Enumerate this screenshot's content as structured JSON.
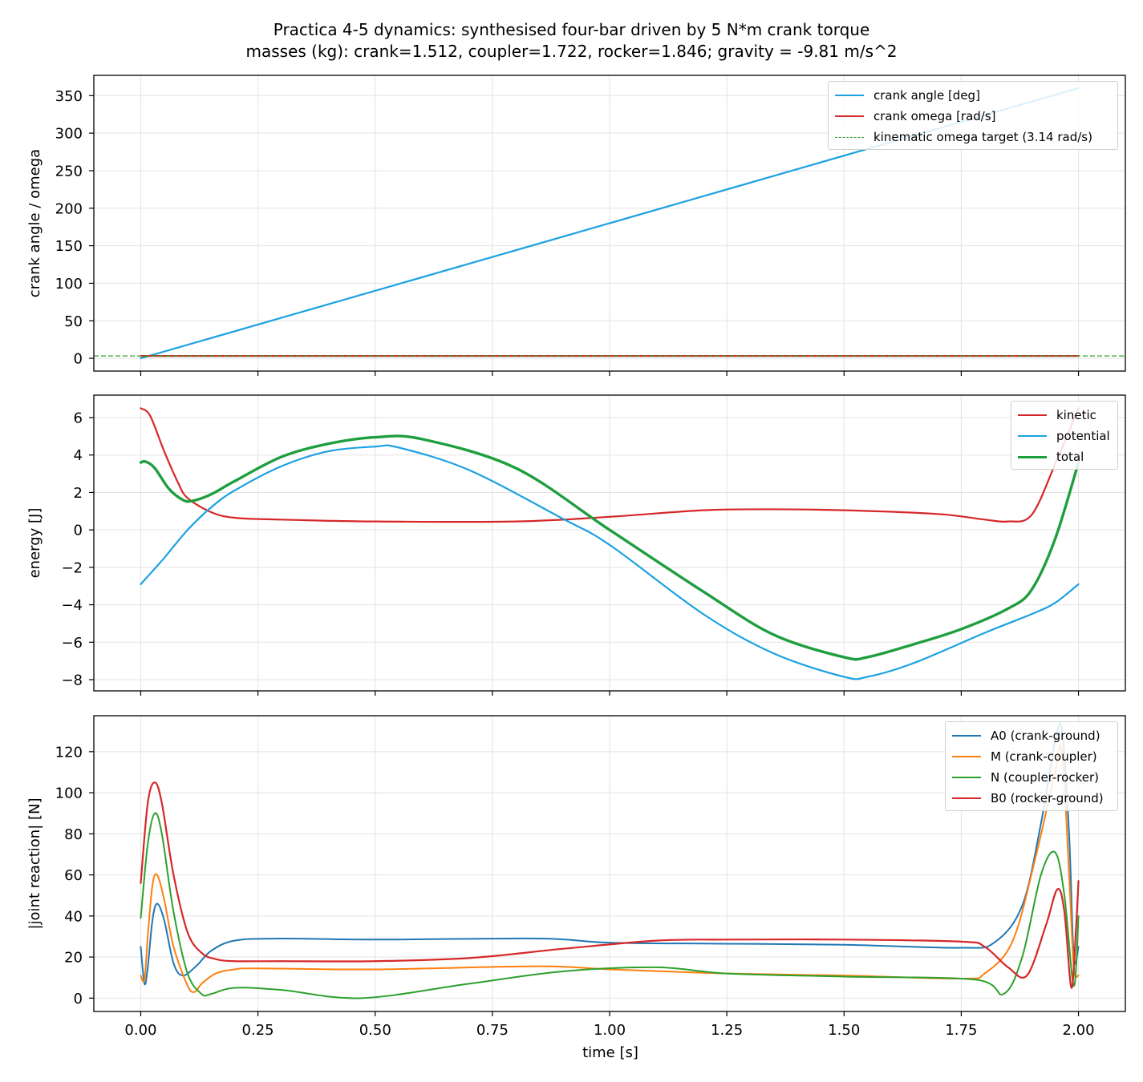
{
  "title": {
    "line1": "Practica 4-5 dynamics: synthesised four-bar driven by 5 N*m crank torque",
    "line2": "masses (kg): crank=1.512, coupler=1.722, rocker=1.846;   gravity = -9.81 m/s^2"
  },
  "chart_data": [
    {
      "type": "line",
      "ylabel": "crank angle / omega",
      "xlabel": "",
      "xlim": [
        -0.1,
        2.1
      ],
      "ylim": [
        -17,
        377
      ],
      "xticks": [
        0.0,
        0.25,
        0.5,
        0.75,
        1.0,
        1.25,
        1.5,
        1.75,
        2.0
      ],
      "yticks": [
        0,
        50,
        100,
        150,
        200,
        250,
        300,
        350
      ],
      "ytick_labels": [
        "0",
        "50",
        "100",
        "150",
        "200",
        "250",
        "300",
        "350"
      ],
      "grid": true,
      "legend_position": "top-right",
      "series": [
        {
          "name": "crank angle [deg]",
          "color": "#1ba1e2",
          "width": 2.2,
          "style": "solid",
          "x": [
            0,
            2
          ],
          "y": [
            0,
            360
          ]
        },
        {
          "name": "crank omega [rad/s]",
          "color": "#d62728",
          "width": 2.2,
          "style": "solid",
          "x": [
            0,
            2
          ],
          "y": [
            3.14,
            3.14
          ]
        },
        {
          "name": "kinematic omega target (3.14 rad/s)",
          "color": "#2ca02c",
          "width": 1.3,
          "style": "dashed",
          "x": [
            -0.1,
            2.1
          ],
          "y": [
            3.14,
            3.14
          ]
        }
      ]
    },
    {
      "type": "line",
      "ylabel": "energy  [J]",
      "xlabel": "",
      "xlim": [
        -0.1,
        2.1
      ],
      "ylim": [
        -8.6,
        7.2
      ],
      "xticks": [
        0.0,
        0.25,
        0.5,
        0.75,
        1.0,
        1.25,
        1.5,
        1.75,
        2.0
      ],
      "yticks": [
        -8,
        -6,
        -4,
        -2,
        0,
        2,
        4,
        6
      ],
      "ytick_labels": [
        "−8",
        "−6",
        "−4",
        "−2",
        "0",
        "2",
        "4",
        "6"
      ],
      "grid": true,
      "legend_position": "top-right",
      "series": [
        {
          "name": "kinetic",
          "color": "#d62728",
          "width": 2.2,
          "style": "solid",
          "x": [
            0,
            0.02,
            0.05,
            0.08,
            0.1,
            0.15,
            0.2,
            0.3,
            0.5,
            0.8,
            1.0,
            1.2,
            1.35,
            1.5,
            1.7,
            1.8,
            1.85,
            1.9,
            1.95,
            2.0
          ],
          "y": [
            6.5,
            6.1,
            4.2,
            2.5,
            1.7,
            0.95,
            0.65,
            0.55,
            0.45,
            0.45,
            0.7,
            1.05,
            1.1,
            1.05,
            0.85,
            0.55,
            0.45,
            0.8,
            3.5,
            6.5
          ]
        },
        {
          "name": "potential",
          "color": "#1ba1e2",
          "width": 2.2,
          "style": "solid",
          "x": [
            0,
            0.05,
            0.1,
            0.15,
            0.2,
            0.3,
            0.4,
            0.5,
            0.55,
            0.7,
            0.9,
            1.0,
            1.2,
            1.35,
            1.5,
            1.55,
            1.65,
            1.8,
            1.9,
            1.95,
            2.0
          ],
          "y": [
            -2.9,
            -1.5,
            0.0,
            1.2,
            2.1,
            3.4,
            4.2,
            4.45,
            4.4,
            3.2,
            0.6,
            -0.8,
            -4.5,
            -6.6,
            -7.85,
            -7.85,
            -7.1,
            -5.5,
            -4.5,
            -3.9,
            -2.9
          ]
        },
        {
          "name": "total",
          "color": "#1f9e3f",
          "width": 3.4,
          "style": "solid",
          "x": [
            0,
            0.01,
            0.03,
            0.06,
            0.09,
            0.11,
            0.15,
            0.2,
            0.3,
            0.4,
            0.5,
            0.6,
            0.8,
            1.0,
            1.2,
            1.35,
            1.5,
            1.55,
            1.65,
            1.75,
            1.85,
            1.9,
            1.95,
            2.0
          ],
          "y": [
            3.6,
            3.65,
            3.3,
            2.2,
            1.6,
            1.55,
            1.9,
            2.6,
            3.9,
            4.6,
            4.95,
            4.85,
            3.3,
            0.0,
            -3.3,
            -5.6,
            -6.8,
            -6.8,
            -6.1,
            -5.3,
            -4.2,
            -3.2,
            -0.5,
            3.6
          ]
        }
      ]
    },
    {
      "type": "line",
      "ylabel": "|joint reaction|  [N]",
      "xlabel": "time  [s]",
      "xlim": [
        -0.1,
        2.1
      ],
      "ylim": [
        -6.5,
        137.5
      ],
      "xticks": [
        0.0,
        0.25,
        0.5,
        0.75,
        1.0,
        1.25,
        1.5,
        1.75,
        2.0
      ],
      "xtick_labels": [
        "0.00",
        "0.25",
        "0.50",
        "0.75",
        "1.00",
        "1.25",
        "1.50",
        "1.75",
        "2.00"
      ],
      "yticks": [
        0,
        20,
        40,
        60,
        80,
        100,
        120
      ],
      "ytick_labels": [
        "0",
        "20",
        "40",
        "60",
        "80",
        "100",
        "120"
      ],
      "grid": true,
      "legend_position": "top-right",
      "series": [
        {
          "name": "A0 (crank-ground)",
          "color": "#1f77b4",
          "width": 2.0,
          "style": "solid",
          "x": [
            0,
            0.008,
            0.015,
            0.025,
            0.035,
            0.05,
            0.07,
            0.09,
            0.12,
            0.15,
            0.2,
            0.3,
            0.5,
            0.85,
            1.0,
            1.25,
            1.5,
            1.75,
            1.82,
            1.88,
            1.92,
            1.95,
            1.965,
            1.98,
            1.99,
            2.0
          ],
          "y": [
            25,
            7,
            15,
            38,
            46,
            38,
            17,
            11,
            16,
            23,
            28,
            29,
            28.5,
            29,
            27,
            26.5,
            26,
            24.5,
            27,
            45,
            85,
            125,
            130,
            80,
            20,
            25
          ]
        },
        {
          "name": "M (crank-coupler)",
          "color": "#ff7f0e",
          "width": 2.0,
          "style": "solid",
          "x": [
            0,
            0.008,
            0.015,
            0.025,
            0.035,
            0.05,
            0.07,
            0.1,
            0.115,
            0.13,
            0.16,
            0.2,
            0.25,
            0.5,
            0.85,
            1.0,
            1.25,
            1.5,
            1.75,
            1.8,
            1.86,
            1.91,
            1.95,
            1.965,
            1.98,
            1.99,
            2.0
          ],
          "y": [
            11,
            9,
            30,
            55,
            60,
            48,
            25,
            6,
            3,
            7,
            12,
            14,
            14.5,
            14,
            15.5,
            14,
            12,
            11,
            9.5,
            12,
            28,
            70,
            110,
            120,
            60,
            15,
            11
          ]
        },
        {
          "name": "N (coupler-rocker)",
          "color": "#2ca02c",
          "width": 2.0,
          "style": "solid",
          "x": [
            0,
            0.015,
            0.03,
            0.045,
            0.07,
            0.1,
            0.13,
            0.15,
            0.2,
            0.3,
            0.47,
            0.7,
            0.9,
            1.1,
            1.25,
            1.5,
            1.78,
            1.84,
            1.88,
            1.92,
            1.95,
            1.97,
            1.99,
            2.0
          ],
          "y": [
            39,
            75,
            90,
            80,
            42,
            12,
            2,
            2,
            5,
            4,
            0,
            7,
            13,
            15,
            12,
            10.5,
            9,
            2,
            20,
            60,
            71,
            50,
            6,
            40
          ]
        },
        {
          "name": "B0 (rocker-ground)",
          "color": "#d62728",
          "width": 2.2,
          "style": "solid",
          "x": [
            0,
            0.015,
            0.03,
            0.045,
            0.07,
            0.1,
            0.13,
            0.16,
            0.2,
            0.3,
            0.5,
            0.7,
            0.9,
            1.1,
            1.25,
            1.5,
            1.75,
            1.8,
            1.85,
            1.89,
            1.93,
            1.955,
            1.97,
            1.985,
            1.995,
            2.0
          ],
          "y": [
            56,
            95,
            105,
            95,
            60,
            32,
            22,
            19,
            18,
            18,
            18,
            19.5,
            24,
            28,
            28.5,
            28.5,
            27.5,
            25,
            15,
            11,
            35,
            53,
            42,
            5,
            35,
            57
          ]
        }
      ]
    }
  ]
}
